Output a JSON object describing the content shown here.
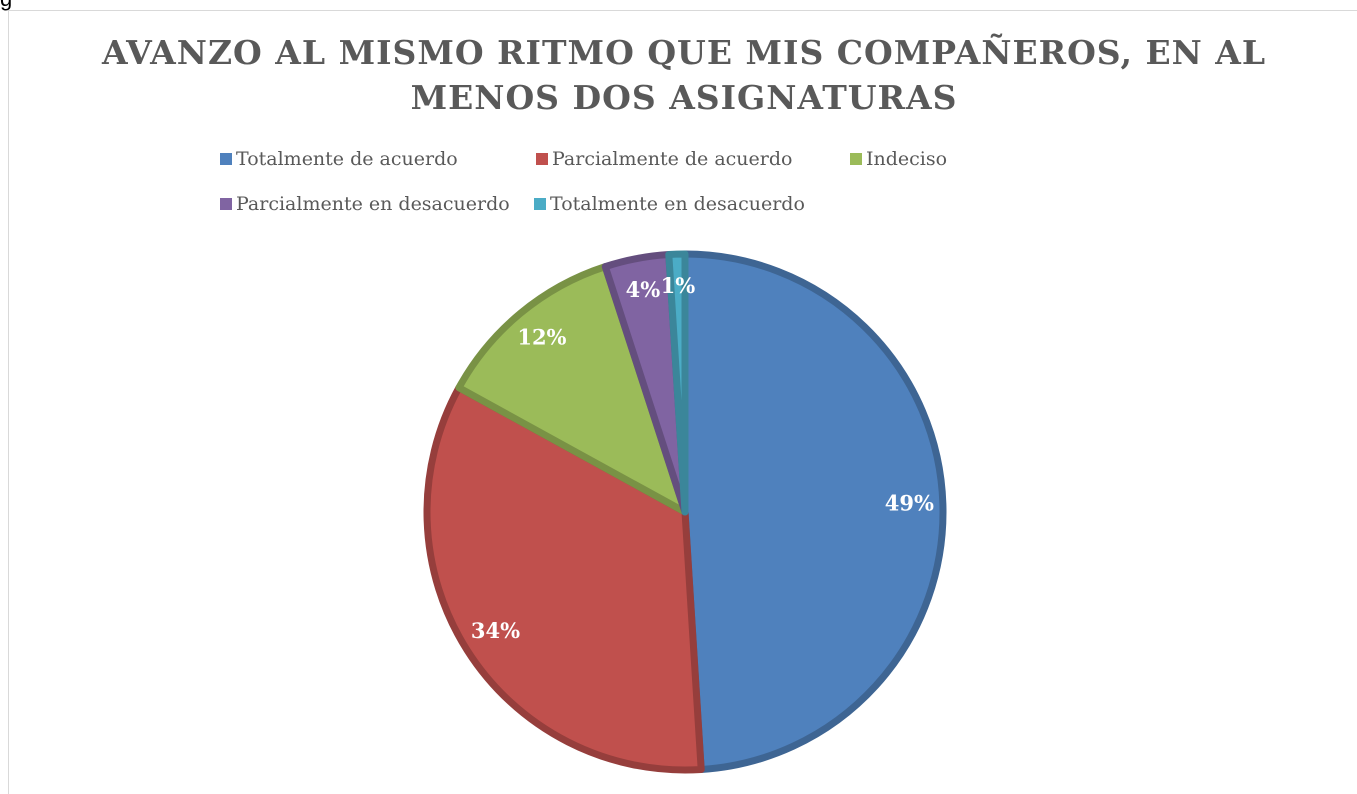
{
  "caption": "g",
  "chart_data": {
    "type": "pie",
    "title": [
      "AVANZO AL MISMO RITMO QUE MIS COMPAÑEROS, EN AL",
      "MENOS DOS ASIGNATURAS"
    ],
    "categories": [
      "Totalmente de acuerdo",
      "Parcialmente de acuerdo",
      "Indeciso",
      "Parcialmente en desacuerdo",
      "Totalmente en desacuerdo"
    ],
    "values": [
      49,
      34,
      12,
      4,
      1
    ],
    "value_labels": [
      "49%",
      "34%",
      "12%",
      "4%",
      "1%"
    ],
    "colors": [
      "#4f81bd",
      "#c0504d",
      "#9bbb59",
      "#8064a2",
      "#4bacc6"
    ],
    "legend": "top"
  }
}
